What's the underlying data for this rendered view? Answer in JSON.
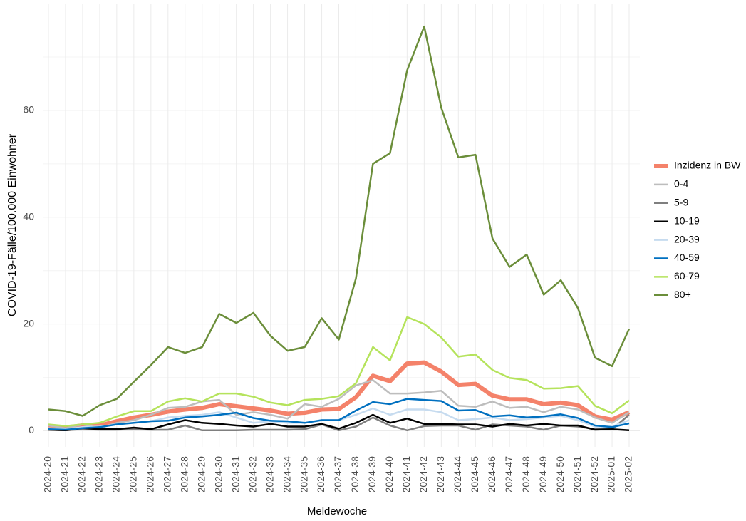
{
  "chart_data": {
    "type": "line",
    "x_label": "Meldewoche",
    "y_label": "COVID-19-Fälle/100.000 Einwohner",
    "categories": [
      "2024-20",
      "2024-21",
      "2024-22",
      "2024-23",
      "2024-24",
      "2024-25",
      "2024-26",
      "2024-27",
      "2024-28",
      "2024-29",
      "2024-30",
      "2024-31",
      "2024-32",
      "2024-33",
      "2024-34",
      "2024-35",
      "2024-36",
      "2024-37",
      "2024-38",
      "2024-39",
      "2024-40",
      "2024-41",
      "2024-42",
      "2024-43",
      "2024-44",
      "2024-45",
      "2024-46",
      "2024-47",
      "2024-48",
      "2024-49",
      "2024-50",
      "2024-51",
      "2024-52",
      "2025-01",
      "2025-02"
    ],
    "ylim": [
      -3,
      80
    ],
    "yticks": [
      0,
      20,
      40,
      60
    ],
    "y_minor_ticks": [
      10,
      30,
      50,
      70
    ],
    "grid": true,
    "legend_position": "right",
    "series": [
      {
        "name": "Inzidenz in BW",
        "color": "#f4826a",
        "width": 6,
        "values": [
          0.8,
          0.6,
          1.0,
          1.0,
          1.8,
          2.5,
          3.0,
          3.6,
          4.0,
          4.3,
          5.0,
          4.6,
          4.2,
          3.8,
          3.2,
          3.4,
          4.0,
          4.1,
          6.3,
          10.3,
          9.3,
          12.6,
          12.8,
          11.1,
          8.6,
          8.8,
          6.6,
          5.9,
          5.9,
          5.0,
          5.3,
          4.8,
          2.7,
          2.1,
          3.5
        ]
      },
      {
        "name": "0-4",
        "color": "#bdbdbd",
        "width": 2.5,
        "values": [
          1.0,
          0.5,
          1.2,
          0.5,
          1.5,
          2.0,
          3.0,
          4.3,
          4.5,
          5.5,
          5.8,
          3.0,
          3.5,
          3.0,
          2.3,
          5.0,
          4.5,
          6.0,
          8.5,
          9.5,
          7.0,
          7.0,
          7.2,
          7.5,
          4.7,
          4.5,
          5.5,
          4.3,
          4.5,
          3.5,
          4.5,
          4.0,
          2.5,
          1.5,
          3.5
        ]
      },
      {
        "name": "5-9",
        "color": "#7f7f7f",
        "width": 2.5,
        "values": [
          0.2,
          0.1,
          0.3,
          0.2,
          0.2,
          0.3,
          0.2,
          0.2,
          1.0,
          0.1,
          0.1,
          0.1,
          0.2,
          0.2,
          0.2,
          0.3,
          1.2,
          0.1,
          0.8,
          2.5,
          1.0,
          0.1,
          0.9,
          1.0,
          1.0,
          0.2,
          1.2,
          1.0,
          0.8,
          0.2,
          1.0,
          0.8,
          0.3,
          0.3,
          3.0
        ]
      },
      {
        "name": "10-19",
        "color": "#000000",
        "width": 2.5,
        "values": [
          0.2,
          0.1,
          0.5,
          0.3,
          0.3,
          0.6,
          0.3,
          1.2,
          2.0,
          1.5,
          1.3,
          1.0,
          0.8,
          1.3,
          0.8,
          0.8,
          1.3,
          0.4,
          1.5,
          3.0,
          1.5,
          2.3,
          1.3,
          1.3,
          1.2,
          1.2,
          0.8,
          1.3,
          1.0,
          1.3,
          1.0,
          1.0,
          0.2,
          0.3,
          0.1
        ]
      },
      {
        "name": "20-39",
        "color": "#c6dbef",
        "width": 2.5,
        "values": [
          0.5,
          0.3,
          0.7,
          0.8,
          1.2,
          1.5,
          1.8,
          2.5,
          2.8,
          3.0,
          3.5,
          2.5,
          1.5,
          1.8,
          1.5,
          1.5,
          2.0,
          2.0,
          3.0,
          4.2,
          3.0,
          4.0,
          4.0,
          3.5,
          2.0,
          2.2,
          2.5,
          2.0,
          2.2,
          2.5,
          2.8,
          2.0,
          0.8,
          0.8,
          2.0
        ]
      },
      {
        "name": "40-59",
        "color": "#0070c0",
        "width": 2.5,
        "values": [
          0.3,
          0.2,
          0.5,
          0.7,
          1.2,
          1.5,
          1.8,
          1.9,
          2.5,
          2.7,
          3.0,
          3.4,
          2.4,
          1.9,
          1.8,
          1.5,
          2.0,
          2.0,
          3.8,
          5.4,
          5.0,
          6.0,
          5.8,
          5.6,
          3.8,
          3.9,
          2.7,
          2.9,
          2.5,
          2.7,
          3.1,
          2.4,
          1.0,
          0.7,
          1.4
        ]
      },
      {
        "name": "60-79",
        "color": "#b5e35c",
        "width": 2.5,
        "values": [
          1.2,
          0.9,
          1.2,
          1.5,
          2.7,
          3.7,
          3.7,
          5.5,
          6.1,
          5.5,
          7.0,
          7.0,
          6.4,
          5.3,
          4.8,
          5.8,
          6.0,
          6.5,
          8.9,
          15.7,
          13.2,
          21.3,
          20.0,
          17.5,
          13.9,
          14.3,
          11.4,
          9.9,
          9.5,
          7.9,
          8.0,
          8.4,
          4.7,
          3.3,
          5.7
        ]
      },
      {
        "name": "80+",
        "color": "#6b8e3a",
        "width": 2.5,
        "values": [
          4.0,
          3.7,
          2.8,
          4.8,
          6.0,
          9.2,
          12.3,
          15.7,
          14.6,
          15.7,
          21.9,
          20.2,
          22.1,
          17.8,
          15.0,
          15.7,
          21.1,
          17.1,
          28.5,
          50.0,
          52.0,
          67.5,
          75.7,
          60.5,
          51.2,
          51.7,
          36.0,
          30.7,
          33.0,
          25.5,
          28.2,
          23.0,
          13.7,
          12.1,
          19.1
        ]
      }
    ]
  }
}
